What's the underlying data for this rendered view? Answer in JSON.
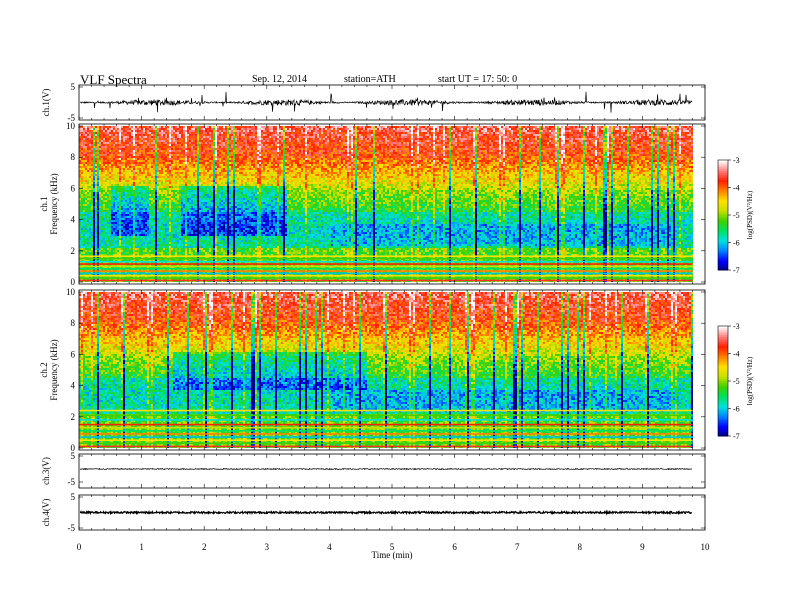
{
  "header": {
    "title": "VLF  Spectra",
    "date": "Sep. 12, 2014",
    "station": "station=ATH",
    "start": "start  UT  =   17: 50: 0"
  },
  "chart_data": [
    {
      "id": "ch1-waveform",
      "type": "line",
      "ylabel": "ch.1(V)",
      "ylim": [
        -5,
        5
      ],
      "yticks": [
        "5",
        "-5"
      ],
      "xlim": [
        0,
        10
      ],
      "data_end_min": 9.8,
      "series": [
        {
          "values_description_level_V": 0.0,
          "noise_amplitude_V": 1.0,
          "spike_amplitude_V": 3.5
        }
      ]
    },
    {
      "id": "ch1-spectrogram",
      "type": "heatmap",
      "ylabel_top": "ch.1",
      "ylabel": "Frequency  (kHz)",
      "ylim": [
        0,
        10
      ],
      "yticks": [
        "0",
        "2",
        "4",
        "6",
        "8",
        "10"
      ],
      "xlim": [
        0,
        10
      ],
      "data_end_min": 9.8,
      "colorbar": {
        "label": "log(PSD)(V²/Hz)",
        "ticks": [
          "-3",
          "-4",
          "-5",
          "-6",
          "-7"
        ],
        "range": [
          -7,
          -3
        ],
        "colors": [
          "#000080",
          "#0000ff",
          "#0080ff",
          "#00e0e0",
          "#00e060",
          "#40d000",
          "#c8e000",
          "#ffe000",
          "#ff8000",
          "#ff2000",
          "#ff8080",
          "#ffffff"
        ]
      },
      "lines_khz": [
        0.1,
        0.25,
        0.4,
        0.55,
        0.7,
        0.85,
        1.0,
        1.15,
        1.3,
        1.5,
        1.65
      ]
    },
    {
      "id": "ch2-spectrogram",
      "type": "heatmap",
      "ylabel_top": "ch.2",
      "ylabel": "Frequency  (kHz)",
      "ylim": [
        0,
        10
      ],
      "yticks": [
        "0",
        "2",
        "4",
        "6",
        "8",
        "10"
      ],
      "xlim": [
        0,
        10
      ],
      "data_end_min": 9.8,
      "colorbar": {
        "label": "log(PSD)(V²/Hz)",
        "ticks": [
          "-3",
          "-4",
          "-5",
          "-6",
          "-7"
        ],
        "range": [
          -7,
          -3
        ]
      },
      "lines_khz": [
        0.1,
        0.3,
        0.5,
        0.7,
        0.9,
        1.1,
        1.3,
        1.5,
        1.8,
        2.1,
        2.4
      ]
    },
    {
      "id": "ch3-waveform",
      "type": "line",
      "ylabel": "ch.3(V)",
      "ylim": [
        -5,
        5
      ],
      "yticks": [
        "5",
        "-5"
      ],
      "xlim": [
        0,
        10
      ],
      "data_end_min": 9.8,
      "series": [
        {
          "level_V": 0.0,
          "noise_amplitude_V": 0.2
        }
      ]
    },
    {
      "id": "ch4-waveform",
      "type": "line",
      "ylabel": "ch.4(V)",
      "ylim": [
        -5,
        5
      ],
      "yticks": [
        "5",
        "-5"
      ],
      "xlim": [
        0,
        10
      ],
      "data_end_min": 9.8,
      "series": [
        {
          "level_V": 0.0,
          "noise_amplitude_V": 0.3
        }
      ],
      "xlabel": "Time  (min)",
      "xticks": [
        "0",
        "1",
        "2",
        "3",
        "4",
        "5",
        "6",
        "7",
        "8",
        "9",
        "10"
      ]
    }
  ]
}
